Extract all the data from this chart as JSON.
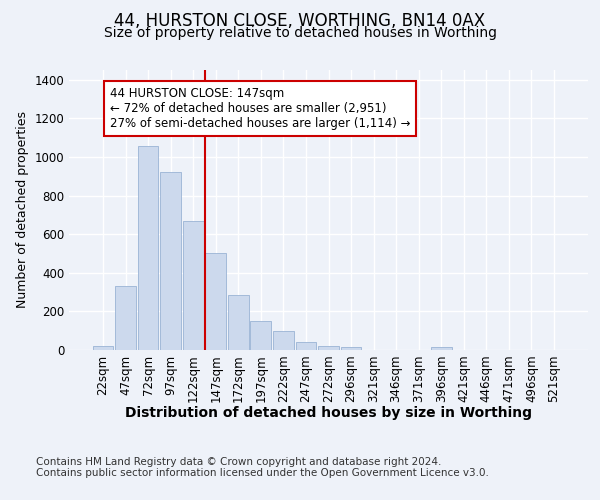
{
  "title1": "44, HURSTON CLOSE, WORTHING, BN14 0AX",
  "title2": "Size of property relative to detached houses in Worthing",
  "xlabel": "Distribution of detached houses by size in Worthing",
  "ylabel": "Number of detached properties",
  "categories": [
    "22sqm",
    "47sqm",
    "72sqm",
    "97sqm",
    "122sqm",
    "147sqm",
    "172sqm",
    "197sqm",
    "222sqm",
    "247sqm",
    "272sqm",
    "296sqm",
    "321sqm",
    "346sqm",
    "371sqm",
    "396sqm",
    "421sqm",
    "446sqm",
    "471sqm",
    "496sqm",
    "521sqm"
  ],
  "values": [
    20,
    330,
    1055,
    920,
    670,
    500,
    285,
    150,
    100,
    40,
    20,
    15,
    0,
    0,
    0,
    15,
    0,
    0,
    0,
    0,
    0
  ],
  "bar_color": "#ccd9ed",
  "bar_edge_color": "#9ab3d5",
  "vline_index": 5,
  "vline_color": "#cc0000",
  "annotation_line1": "44 HURSTON CLOSE: 147sqm",
  "annotation_line2": "← 72% of detached houses are smaller (2,951)",
  "annotation_line3": "27% of semi-detached houses are larger (1,114) →",
  "annotation_box_color": "#ffffff",
  "annotation_box_edge": "#cc0000",
  "footer": "Contains HM Land Registry data © Crown copyright and database right 2024.\nContains public sector information licensed under the Open Government Licence v3.0.",
  "ylim": [
    0,
    1450
  ],
  "background_color": "#eef2f9",
  "plot_bg_color": "#eef2f9",
  "grid_color": "#ffffff",
  "title1_fontsize": 12,
  "title2_fontsize": 10,
  "ylabel_fontsize": 9,
  "xlabel_fontsize": 10,
  "tick_fontsize": 8.5,
  "footer_fontsize": 7.5
}
